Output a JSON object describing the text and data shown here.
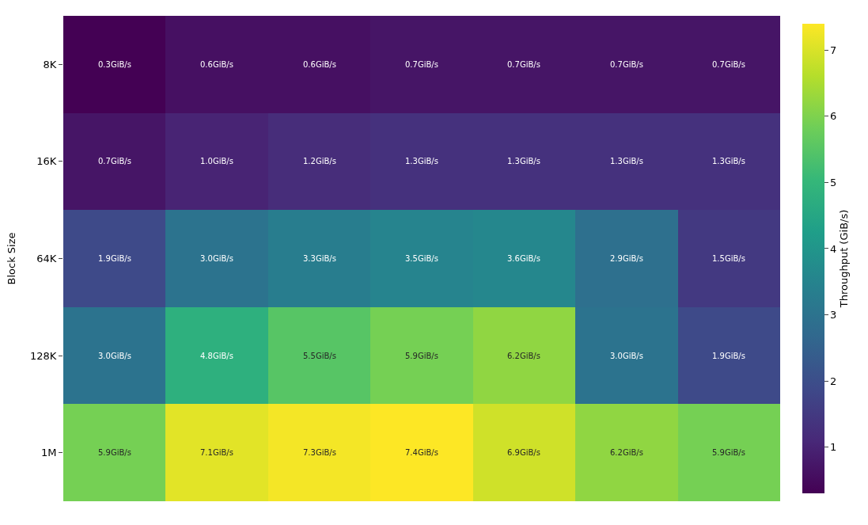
{
  "chart_data": {
    "type": "heatmap",
    "ylabel": "Block Size",
    "clabel": "Throughput (GiB/s)",
    "categories": [
      null,
      null,
      null,
      null,
      null,
      null,
      null
    ],
    "y_categories": [
      "8K",
      "16K",
      "64K",
      "128K",
      "1M"
    ],
    "cells": [
      [
        0.3,
        0.6,
        0.6,
        0.7,
        0.7,
        0.7,
        0.7
      ],
      [
        0.7,
        1.0,
        1.2,
        1.3,
        1.3,
        1.3,
        1.3
      ],
      [
        1.9,
        3.0,
        3.3,
        3.5,
        3.6,
        2.9,
        1.5
      ],
      [
        3.0,
        4.8,
        5.5,
        5.9,
        6.2,
        3.0,
        1.9
      ],
      [
        5.9,
        7.1,
        7.3,
        7.4,
        6.9,
        6.2,
        5.9
      ]
    ],
    "cell_labels": [
      [
        "0.3GiB/s",
        "0.6GiB/s",
        "0.6GiB/s",
        "0.7GiB/s",
        "0.7GiB/s",
        "0.7GiB/s",
        "0.7GiB/s"
      ],
      [
        "0.7GiB/s",
        "1.0GiB/s",
        "1.2GiB/s",
        "1.3GiB/s",
        "1.3GiB/s",
        "1.3GiB/s",
        "1.3GiB/s"
      ],
      [
        "1.9GiB/s",
        "3.0GiB/s",
        "3.3GiB/s",
        "3.5GiB/s",
        "3.6GiB/s",
        "2.9GiB/s",
        "1.5GiB/s"
      ],
      [
        "3.0GiB/s",
        "4.8GiB/s",
        "5.5GiB/s",
        "5.9GiB/s",
        "6.2GiB/s",
        "3.0GiB/s",
        "1.9GiB/s"
      ],
      [
        "5.9GiB/s",
        "7.1GiB/s",
        "7.3GiB/s",
        "7.4GiB/s",
        "6.9GiB/s",
        "6.2GiB/s",
        "5.9GiB/s"
      ]
    ],
    "clim": [
      0.3,
      7.4
    ],
    "cticks": [
      1,
      2,
      3,
      4,
      5,
      6,
      7
    ],
    "tick_labels": "y"
  }
}
